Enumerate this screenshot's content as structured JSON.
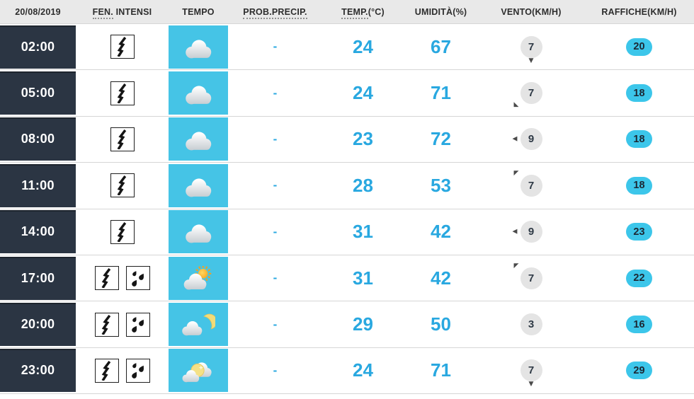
{
  "header": {
    "columns": [
      {
        "id": "date",
        "label": "20/08/2019",
        "abbr": "",
        "rest": ""
      },
      {
        "id": "phenomena",
        "label": "",
        "abbr": "FEN.",
        "rest": " INTENSI"
      },
      {
        "id": "tempo",
        "label": "TEMPO",
        "abbr": "",
        "rest": ""
      },
      {
        "id": "prob",
        "label": "",
        "abbr": "PROB.PRECIP.",
        "rest": ""
      },
      {
        "id": "temp",
        "label": "",
        "abbr": "TEMP.",
        "rest": "(°C)"
      },
      {
        "id": "humidity",
        "label": "UMIDITÀ(%)",
        "abbr": "",
        "rest": ""
      },
      {
        "id": "wind",
        "label": "VENTO(KM/H)",
        "abbr": "",
        "rest": ""
      },
      {
        "id": "gusts",
        "label": "RAFFICHE(KM/H)",
        "abbr": "",
        "rest": ""
      }
    ]
  },
  "rows": [
    {
      "time": "02:00",
      "phenomena": [
        "storm"
      ],
      "weather": "cloudy",
      "prob": "-",
      "temp": "24",
      "humidity": "67",
      "wind": {
        "value": "7",
        "arrow": "s"
      },
      "gust": "20"
    },
    {
      "time": "05:00",
      "phenomena": [
        "storm"
      ],
      "weather": "cloudy",
      "prob": "-",
      "temp": "24",
      "humidity": "71",
      "wind": {
        "value": "7",
        "arrow": "sw"
      },
      "gust": "18"
    },
    {
      "time": "08:00",
      "phenomena": [
        "storm"
      ],
      "weather": "cloudy",
      "prob": "-",
      "temp": "23",
      "humidity": "72",
      "wind": {
        "value": "9",
        "arrow": "w"
      },
      "gust": "18"
    },
    {
      "time": "11:00",
      "phenomena": [
        "storm"
      ],
      "weather": "cloudy",
      "prob": "-",
      "temp": "28",
      "humidity": "53",
      "wind": {
        "value": "7",
        "arrow": "nw"
      },
      "gust": "18"
    },
    {
      "time": "14:00",
      "phenomena": [
        "storm"
      ],
      "weather": "cloudy",
      "prob": "-",
      "temp": "31",
      "humidity": "42",
      "wind": {
        "value": "9",
        "arrow": "w"
      },
      "gust": "23"
    },
    {
      "time": "17:00",
      "phenomena": [
        "storm",
        "rain"
      ],
      "weather": "sun-cloud",
      "prob": "-",
      "temp": "31",
      "humidity": "42",
      "wind": {
        "value": "7",
        "arrow": "nw"
      },
      "gust": "22"
    },
    {
      "time": "20:00",
      "phenomena": [
        "storm",
        "rain"
      ],
      "weather": "cloud-moon",
      "prob": "-",
      "temp": "29",
      "humidity": "50",
      "wind": {
        "value": "3",
        "arrow": null
      },
      "gust": "16"
    },
    {
      "time": "23:00",
      "phenomena": [
        "storm",
        "rain"
      ],
      "weather": "moon-clouds",
      "prob": "-",
      "temp": "24",
      "humidity": "71",
      "wind": {
        "value": "7",
        "arrow": "s"
      },
      "gust": "29"
    }
  ],
  "colors": {
    "header_bg": "#e9e9e9",
    "divider": "#d6d6d6",
    "dark_navy": "#2b3543",
    "accent_cyan": "#45c4e6",
    "value_blue": "#29a8e0",
    "gust_pill_cyan": "#3cc6ea",
    "wind_circle_gray": "#e4e4e4"
  }
}
